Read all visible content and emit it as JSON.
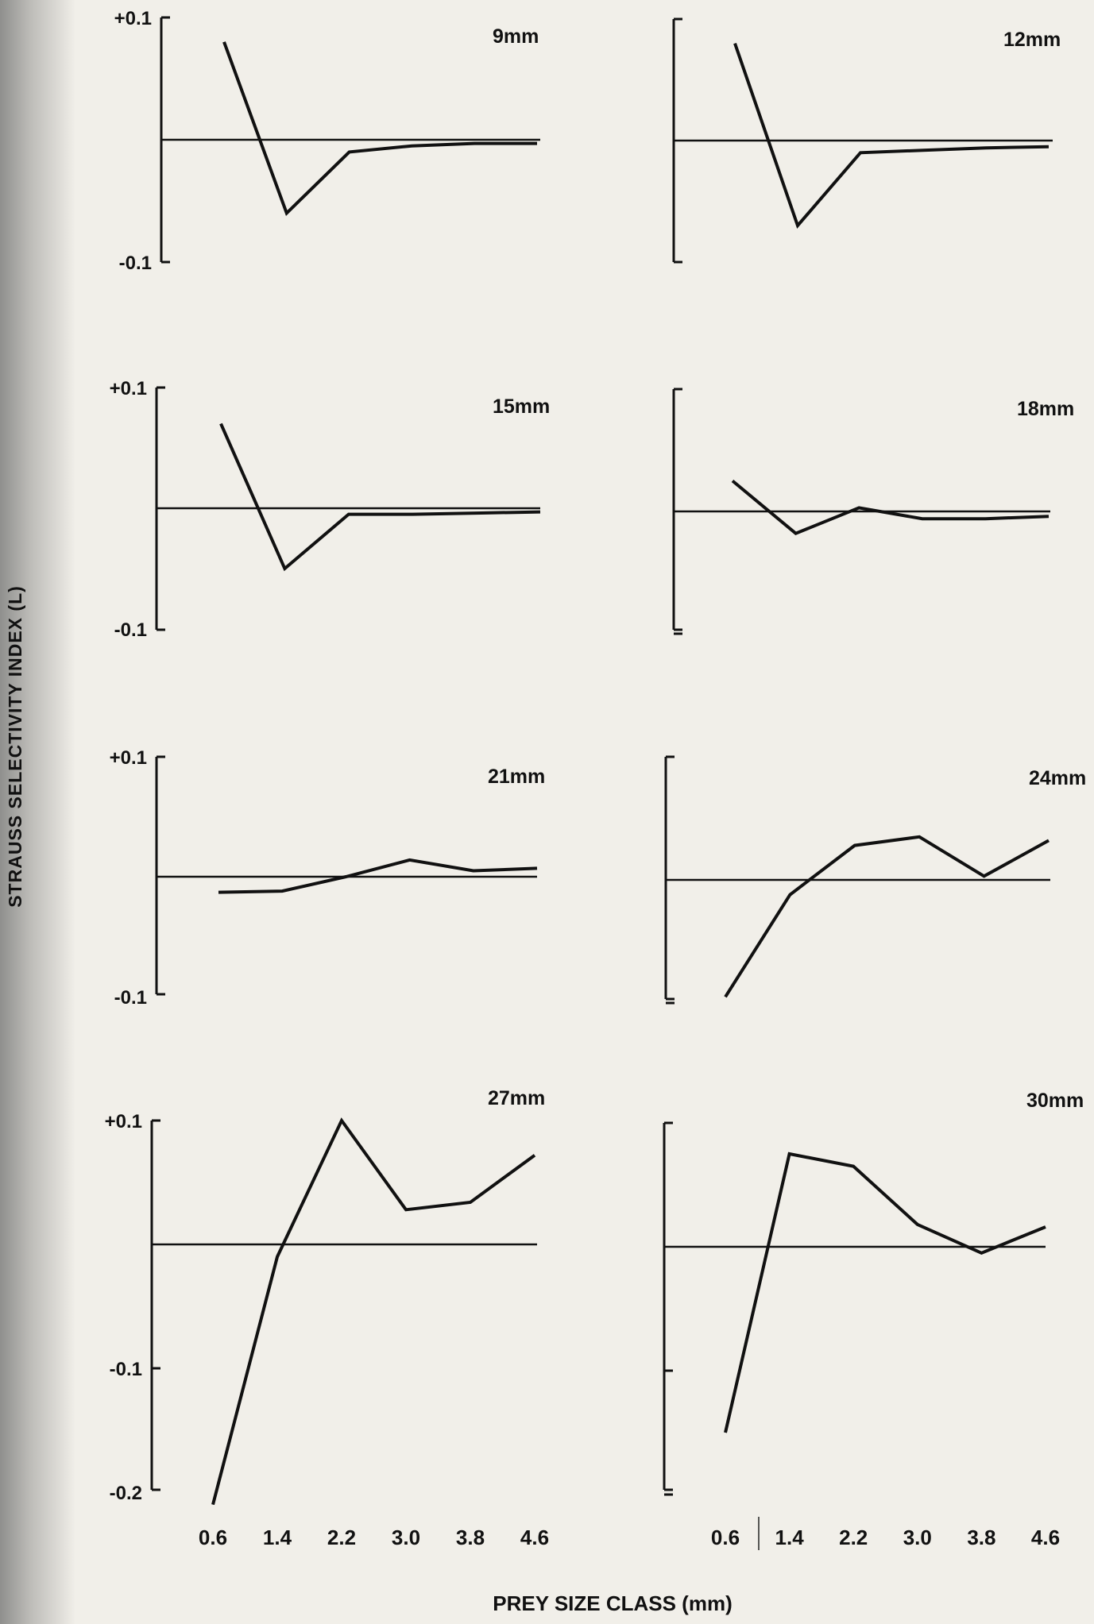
{
  "ylabel": "STRAUSS SELECTIVITY INDEX (L)",
  "xlabel": "PREY SIZE CLASS (mm)",
  "chart_data": [
    {
      "type": "line",
      "title": "9mm",
      "categories": [
        "0.6",
        "1.4",
        "2.2",
        "3.0",
        "3.8",
        "4.6"
      ],
      "values": [
        0.08,
        -0.06,
        -0.01,
        -0.005,
        -0.003,
        -0.003
      ],
      "ylim": [
        -0.1,
        0.1
      ],
      "ytick_labels": [
        "+0.1",
        "-0.1"
      ],
      "xtick_labels": []
    },
    {
      "type": "line",
      "title": "12mm",
      "categories": [
        "0.6",
        "1.4",
        "2.2",
        "3.0",
        "3.8",
        "4.6"
      ],
      "values": [
        0.08,
        -0.07,
        -0.01,
        -0.008,
        -0.006,
        -0.005
      ],
      "ylim": [
        -0.1,
        0.1
      ],
      "ytick_labels": [],
      "xtick_labels": []
    },
    {
      "type": "line",
      "title": "15mm",
      "categories": [
        "0.6",
        "1.4",
        "2.2",
        "3.0",
        "3.8",
        "4.6"
      ],
      "values": [
        0.07,
        -0.05,
        -0.005,
        -0.005,
        -0.004,
        -0.003
      ],
      "ylim": [
        -0.1,
        0.1
      ],
      "ytick_labels": [
        "+0.1",
        "-0.1"
      ],
      "xtick_labels": []
    },
    {
      "type": "line",
      "title": "18mm",
      "categories": [
        "0.6",
        "1.4",
        "2.2",
        "3.0",
        "3.8",
        "4.6"
      ],
      "values": [
        0.025,
        -0.018,
        0.003,
        -0.006,
        -0.006,
        -0.004
      ],
      "ylim": [
        -0.1,
        0.1
      ],
      "ytick_labels": [],
      "xtick_labels": []
    },
    {
      "type": "line",
      "title": "21mm",
      "categories": [
        "0.6",
        "1.4",
        "2.2",
        "3.0",
        "3.8",
        "4.6"
      ],
      "values": [
        -0.013,
        -0.012,
        0,
        0.014,
        0.005,
        0.007
      ],
      "ylim": [
        -0.1,
        0.1
      ],
      "ytick_labels": [
        "+0.1",
        "-0.1"
      ],
      "xtick_labels": []
    },
    {
      "type": "line",
      "title": "24mm",
      "categories": [
        "0.6",
        "1.4",
        "2.2",
        "3.0",
        "3.8",
        "4.6"
      ],
      "values": [
        -0.095,
        -0.012,
        0.028,
        0.035,
        0.003,
        0.032
      ],
      "ylim": [
        -0.1,
        0.1
      ],
      "ytick_labels": [],
      "xtick_labels": []
    },
    {
      "type": "line",
      "title": "27mm",
      "categories": [
        "0.6",
        "1.4",
        "2.2",
        "3.0",
        "3.8",
        "4.6"
      ],
      "values": [
        -0.21,
        -0.01,
        0.1,
        0.028,
        0.034,
        0.072
      ],
      "ylim": [
        -0.2,
        0.1
      ],
      "ytick_labels": [
        "+0.1",
        "-0.1",
        "-0.2"
      ],
      "xtick_labels": [
        "0.6",
        "1.4",
        "2.2",
        "3.0",
        "3.8",
        "4.6"
      ]
    },
    {
      "type": "line",
      "title": "30mm",
      "categories": [
        "0.6",
        "1.4",
        "2.2",
        "3.0",
        "3.8",
        "4.6"
      ],
      "values": [
        -0.15,
        0.075,
        0.065,
        0.018,
        -0.005,
        0.016
      ],
      "ylim": [
        -0.2,
        0.1
      ],
      "ytick_labels": [],
      "xtick_labels": [
        "0.6",
        "1.4",
        "2.2",
        "3.0",
        "3.8",
        "4.6"
      ]
    }
  ]
}
